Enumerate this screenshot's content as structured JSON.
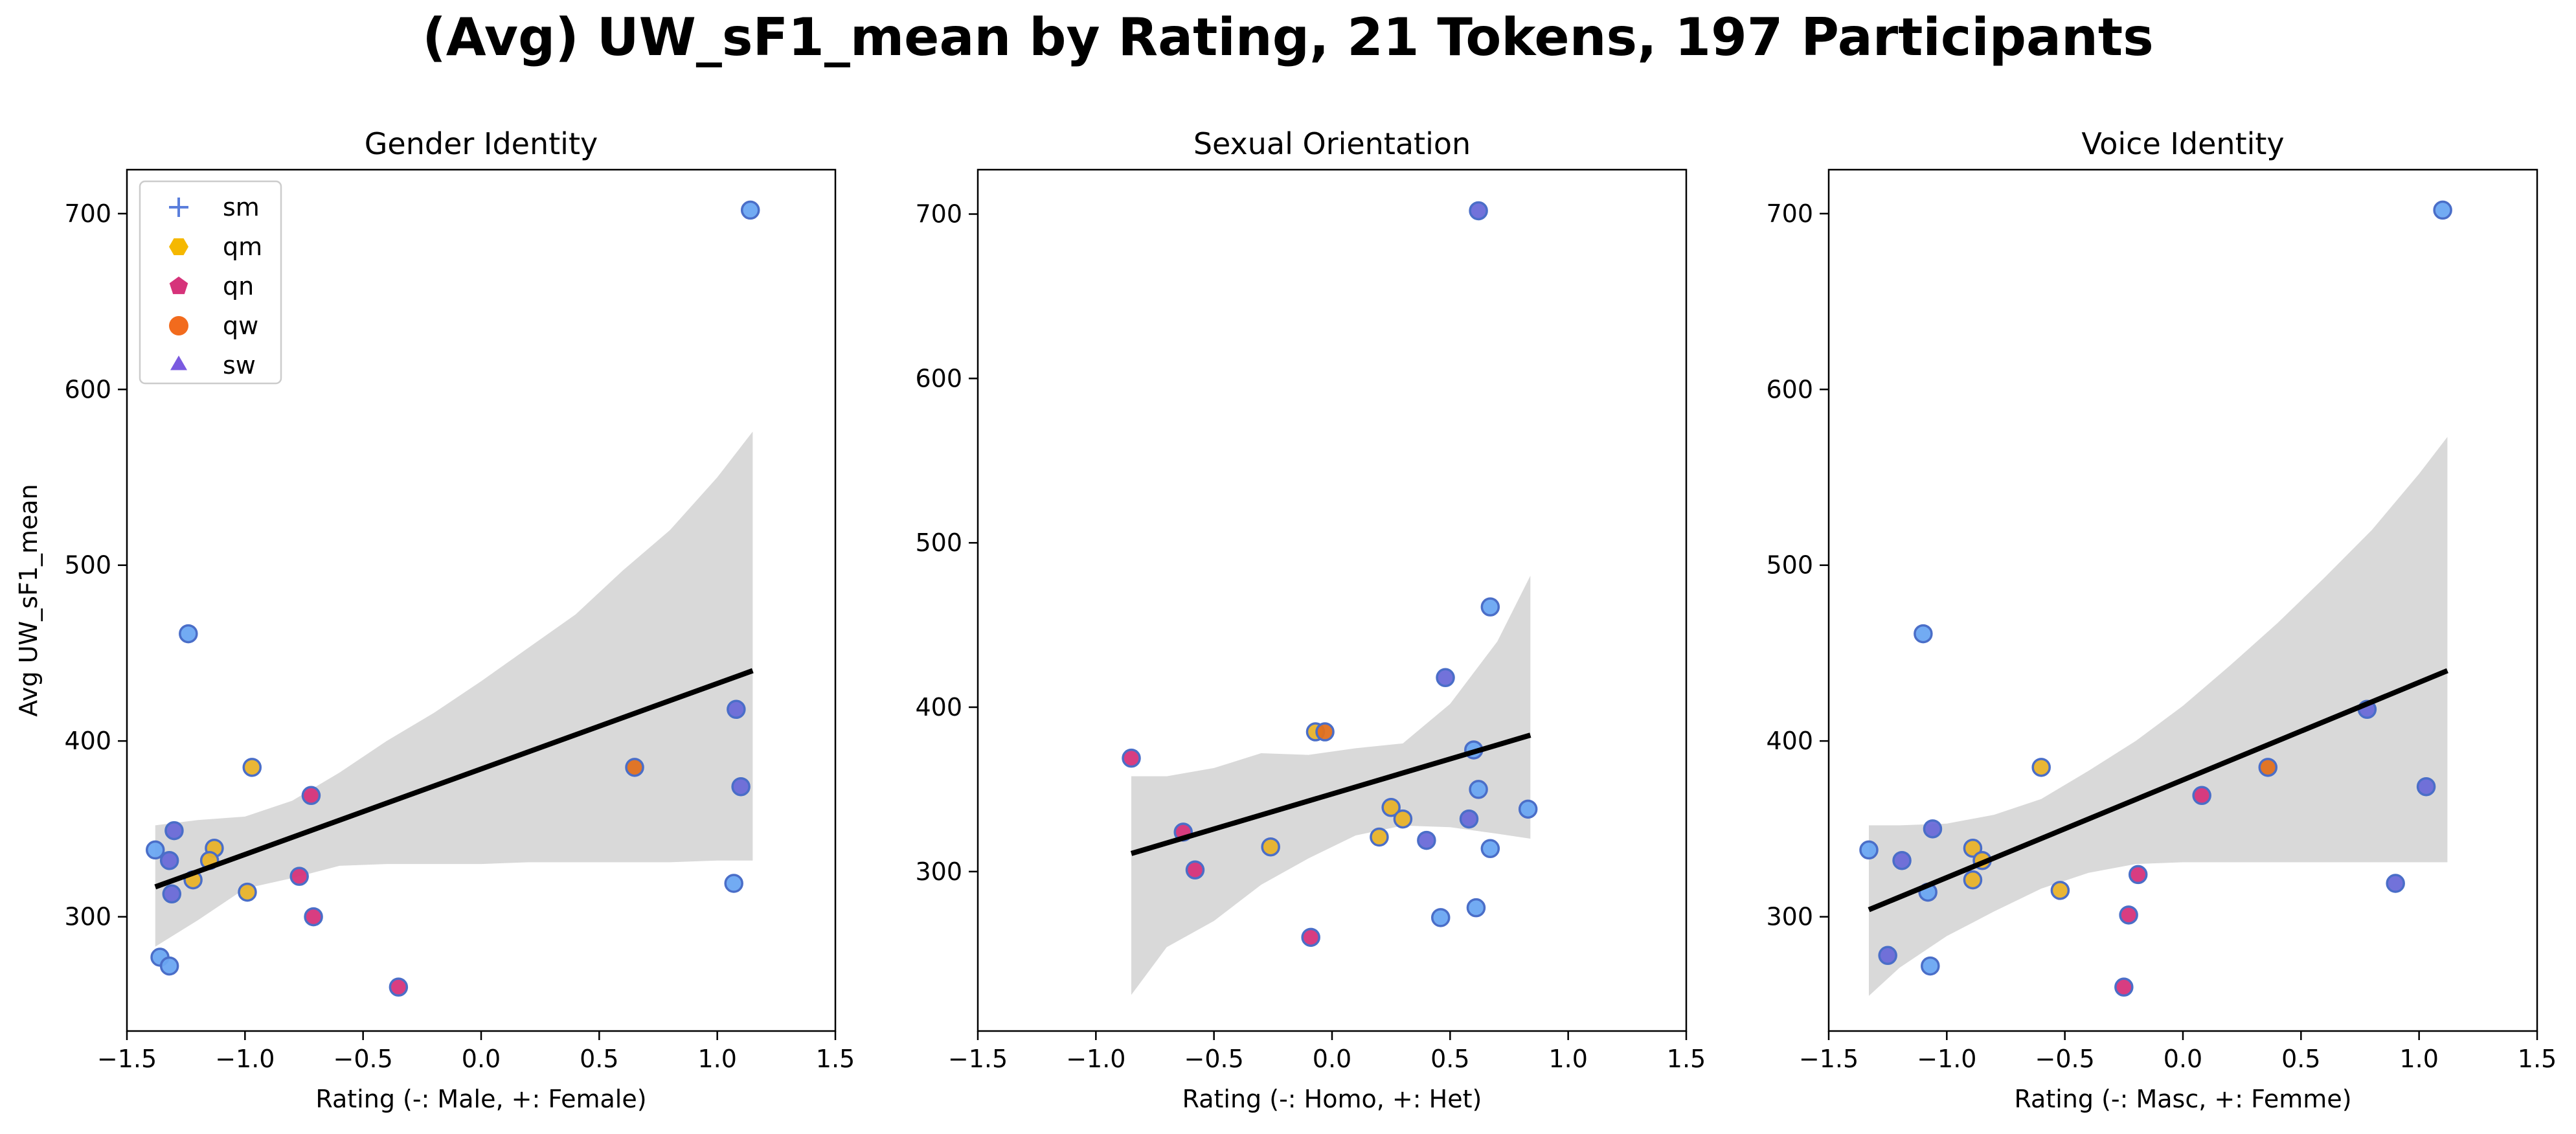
{
  "figure": {
    "title": "(Avg) UW_sF1_mean by Rating, 21 Tokens, 197 Participants"
  },
  "legend": {
    "placement": "top-left",
    "entries": [
      {
        "label": "sm",
        "marker": "plus",
        "color": "#5b7fdc"
      },
      {
        "label": "qm",
        "marker": "hexagon",
        "color": "#f5b800"
      },
      {
        "label": "qn",
        "marker": "pentagon",
        "color": "#d6337a"
      },
      {
        "label": "qw",
        "marker": "circle",
        "color": "#f26b1d"
      },
      {
        "label": "sw",
        "marker": "triangle",
        "color": "#7a5ae0"
      }
    ]
  },
  "colors": {
    "sm": "#6aa7f2",
    "qm": "#e8b22a",
    "qn": "#d6337a",
    "qw": "#e0701f",
    "sw": "#6a6ad8",
    "marker_edge": "#4a6ec8",
    "regression_line": "#000000",
    "confidence_band": "#d9d9d9"
  },
  "chart_data": [
    {
      "type": "scatter",
      "title": "Gender Identity",
      "xlabel": "Rating (-: Male, +: Female)",
      "ylabel": "Avg UW_sF1_mean",
      "xlim": [
        -1.5,
        1.5
      ],
      "ylim": [
        235,
        725
      ],
      "xticks": [
        -1.5,
        -1.0,
        -0.5,
        0.0,
        0.5,
        1.0,
        1.5
      ],
      "xtick_labels": [
        "−1.5",
        "−1.0",
        "−0.5",
        "0.0",
        "0.5",
        "1.0",
        "1.5"
      ],
      "yticks": [
        300,
        400,
        500,
        600,
        700
      ],
      "ytick_labels": [
        "300",
        "400",
        "500",
        "600",
        "700"
      ],
      "grid": false,
      "legend": true,
      "regression": {
        "x": [
          -1.38,
          1.15
        ],
        "y": [
          317,
          440
        ]
      },
      "band": {
        "x": [
          -1.38,
          -1.2,
          -1.0,
          -0.8,
          -0.6,
          -0.4,
          -0.2,
          0.0,
          0.2,
          0.4,
          0.6,
          0.8,
          1.0,
          1.15
        ],
        "upper": [
          352,
          355,
          357,
          366,
          382,
          400,
          416,
          434,
          453,
          472,
          497,
          520,
          550,
          576
        ],
        "lower": [
          283,
          298,
          316,
          322,
          329,
          330,
          330,
          330,
          331,
          331,
          331,
          331,
          332,
          332
        ]
      },
      "points": [
        {
          "x": 1.14,
          "y": 702,
          "group": "sm"
        },
        {
          "x": -1.24,
          "y": 461,
          "group": "sm"
        },
        {
          "x": 1.08,
          "y": 418,
          "group": "sw"
        },
        {
          "x": -0.97,
          "y": 385,
          "group": "qm"
        },
        {
          "x": 0.65,
          "y": 385,
          "group": "qw"
        },
        {
          "x": 1.1,
          "y": 374,
          "group": "sw"
        },
        {
          "x": -0.72,
          "y": 369,
          "group": "qn"
        },
        {
          "x": -1.3,
          "y": 349,
          "group": "sw"
        },
        {
          "x": -1.13,
          "y": 339,
          "group": "qm"
        },
        {
          "x": -1.38,
          "y": 338,
          "group": "sm"
        },
        {
          "x": -1.32,
          "y": 332,
          "group": "sw"
        },
        {
          "x": -1.15,
          "y": 332,
          "group": "qm"
        },
        {
          "x": -0.77,
          "y": 323,
          "group": "qn"
        },
        {
          "x": -1.22,
          "y": 321,
          "group": "qm"
        },
        {
          "x": 1.07,
          "y": 319,
          "group": "sm"
        },
        {
          "x": -1.31,
          "y": 313,
          "group": "sw"
        },
        {
          "x": -0.99,
          "y": 314,
          "group": "qm"
        },
        {
          "x": -0.71,
          "y": 300,
          "group": "qn"
        },
        {
          "x": -1.36,
          "y": 277,
          "group": "sm"
        },
        {
          "x": -1.32,
          "y": 272,
          "group": "sm"
        },
        {
          "x": -0.35,
          "y": 260,
          "group": "qn"
        }
      ]
    },
    {
      "type": "scatter",
      "title": "Sexual Orientation",
      "xlabel": "Rating (-: Homo, +: Het)",
      "ylabel": "",
      "xlim": [
        -1.5,
        1.5
      ],
      "ylim": [
        203,
        727
      ],
      "xticks": [
        -1.5,
        -1.0,
        -0.5,
        0.0,
        0.5,
        1.0,
        1.5
      ],
      "xtick_labels": [
        "−1.5",
        "−1.0",
        "−0.5",
        "0.0",
        "0.5",
        "1.0",
        "1.5"
      ],
      "yticks": [
        300,
        400,
        500,
        600,
        700
      ],
      "ytick_labels": [
        "300",
        "400",
        "500",
        "600",
        "700"
      ],
      "grid": false,
      "legend": false,
      "regression": {
        "x": [
          -0.85,
          0.84
        ],
        "y": [
          311,
          383
        ]
      },
      "band": {
        "x": [
          -0.85,
          -0.7,
          -0.5,
          -0.3,
          -0.1,
          0.1,
          0.3,
          0.5,
          0.7,
          0.84
        ],
        "upper": [
          358,
          358,
          363,
          372,
          371,
          375,
          378,
          402,
          440,
          480
        ],
        "lower": [
          225,
          254,
          270,
          292,
          308,
          322,
          328,
          327,
          323,
          320
        ]
      },
      "points": [
        {
          "x": 0.62,
          "y": 702,
          "group": "sw"
        },
        {
          "x": 0.67,
          "y": 461,
          "group": "sm"
        },
        {
          "x": 0.48,
          "y": 418,
          "group": "sw"
        },
        {
          "x": -0.07,
          "y": 385,
          "group": "qm"
        },
        {
          "x": -0.03,
          "y": 385,
          "group": "qw"
        },
        {
          "x": 0.6,
          "y": 374,
          "group": "sm"
        },
        {
          "x": -0.85,
          "y": 369,
          "group": "qn"
        },
        {
          "x": 0.62,
          "y": 350,
          "group": "sm"
        },
        {
          "x": 0.25,
          "y": 339,
          "group": "qm"
        },
        {
          "x": 0.83,
          "y": 338,
          "group": "sm"
        },
        {
          "x": 0.3,
          "y": 332,
          "group": "qm"
        },
        {
          "x": 0.58,
          "y": 332,
          "group": "sw"
        },
        {
          "x": -0.63,
          "y": 324,
          "group": "qn"
        },
        {
          "x": 0.2,
          "y": 321,
          "group": "qm"
        },
        {
          "x": 0.4,
          "y": 319,
          "group": "sw"
        },
        {
          "x": -0.26,
          "y": 315,
          "group": "qm"
        },
        {
          "x": 0.67,
          "y": 314,
          "group": "sm"
        },
        {
          "x": -0.58,
          "y": 301,
          "group": "qn"
        },
        {
          "x": 0.61,
          "y": 278,
          "group": "sm"
        },
        {
          "x": 0.46,
          "y": 272,
          "group": "sm"
        },
        {
          "x": -0.09,
          "y": 260,
          "group": "qn"
        }
      ]
    },
    {
      "type": "scatter",
      "title": "Voice Identity",
      "xlabel": "Rating (-: Masc, +: Femme)",
      "ylabel": "",
      "xlim": [
        -1.5,
        1.5
      ],
      "ylim": [
        235,
        725
      ],
      "xticks": [
        -1.5,
        -1.0,
        -0.5,
        0.0,
        0.5,
        1.0,
        1.5
      ],
      "xtick_labels": [
        "−1.5",
        "−1.0",
        "−0.5",
        "0.0",
        "0.5",
        "1.0",
        "1.5"
      ],
      "yticks": [
        300,
        400,
        500,
        600,
        700
      ],
      "ytick_labels": [
        "300",
        "400",
        "500",
        "600",
        "700"
      ],
      "grid": false,
      "legend": false,
      "regression": {
        "x": [
          -1.33,
          1.12
        ],
        "y": [
          304,
          440
        ]
      },
      "band": {
        "x": [
          -1.33,
          -1.2,
          -1.0,
          -0.8,
          -0.6,
          -0.4,
          -0.2,
          0.0,
          0.2,
          0.4,
          0.6,
          0.8,
          1.0,
          1.12
        ],
        "upper": [
          352,
          352,
          353,
          358,
          367,
          383,
          400,
          420,
          443,
          467,
          493,
          520,
          552,
          573
        ],
        "lower": [
          255,
          271,
          289,
          303,
          316,
          325,
          330,
          331,
          331,
          331,
          331,
          331,
          331,
          331
        ]
      },
      "points": [
        {
          "x": 1.1,
          "y": 702,
          "group": "sm"
        },
        {
          "x": -1.1,
          "y": 461,
          "group": "sm"
        },
        {
          "x": 0.78,
          "y": 418,
          "group": "sw"
        },
        {
          "x": -0.6,
          "y": 385,
          "group": "qm"
        },
        {
          "x": 0.36,
          "y": 385,
          "group": "qw"
        },
        {
          "x": 1.03,
          "y": 374,
          "group": "sw"
        },
        {
          "x": 0.08,
          "y": 369,
          "group": "qn"
        },
        {
          "x": -1.06,
          "y": 350,
          "group": "sw"
        },
        {
          "x": -0.89,
          "y": 339,
          "group": "qm"
        },
        {
          "x": -1.33,
          "y": 338,
          "group": "sm"
        },
        {
          "x": -1.19,
          "y": 332,
          "group": "sw"
        },
        {
          "x": -0.85,
          "y": 332,
          "group": "qm"
        },
        {
          "x": -0.19,
          "y": 324,
          "group": "qn"
        },
        {
          "x": -0.89,
          "y": 321,
          "group": "qm"
        },
        {
          "x": 0.9,
          "y": 319,
          "group": "sw"
        },
        {
          "x": -1.08,
          "y": 314,
          "group": "sm"
        },
        {
          "x": -0.52,
          "y": 315,
          "group": "qm"
        },
        {
          "x": -0.23,
          "y": 301,
          "group": "qn"
        },
        {
          "x": -1.25,
          "y": 278,
          "group": "sw"
        },
        {
          "x": -1.07,
          "y": 272,
          "group": "sm"
        },
        {
          "x": -0.25,
          "y": 260,
          "group": "qn"
        }
      ]
    }
  ]
}
